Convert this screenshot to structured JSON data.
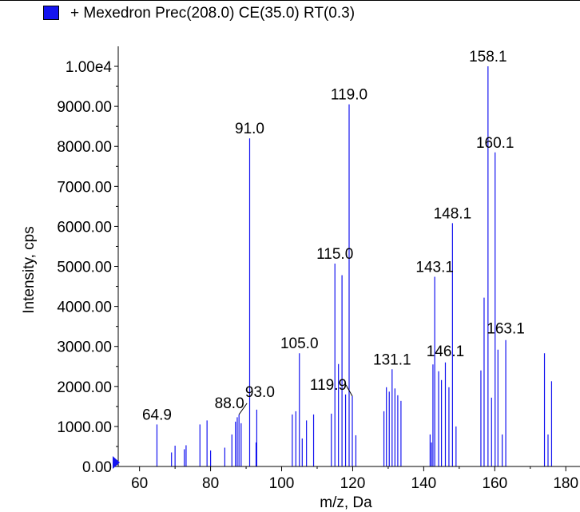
{
  "legend": {
    "label": "+ Mexedron Prec(208.0) CE(35.0) RT(0.3)",
    "color": "#1414f0"
  },
  "chart_data": {
    "type": "bar",
    "title": "",
    "xlabel": "m/z, Da",
    "ylabel": "Intensity, cps",
    "xlim": [
      54,
      184
    ],
    "ylim": [
      0,
      10500
    ],
    "x_ticks": [
      60,
      80,
      100,
      120,
      140,
      160,
      180
    ],
    "x_tick_labels": [
      "60",
      "80",
      "100",
      "120",
      "140",
      "160",
      "180"
    ],
    "y_ticks": [
      0,
      1000,
      2000,
      3000,
      4000,
      5000,
      6000,
      7000,
      8000,
      9000,
      10000
    ],
    "y_tick_labels": [
      "0.00",
      "1000.00",
      "2000.00",
      "3000.00",
      "4000.00",
      "5000.00",
      "6000.00",
      "7000.00",
      "8000.00",
      "9000.00",
      "1.00e4"
    ],
    "line_color": "#1414f0",
    "series": [
      {
        "x": [
          64.9,
          69.0,
          70.0,
          72.6,
          73.1,
          77.0,
          79.0,
          80.0,
          84.0,
          86.0,
          87.0,
          87.5,
          88.0,
          88.6,
          91.0,
          92.8,
          93.0,
          103.0,
          104.0,
          105.0,
          105.8,
          107.0,
          109.0,
          114.0,
          115.0,
          116.0,
          117.0,
          118.0,
          119.0,
          119.9,
          120.9,
          128.8,
          129.5,
          130.3,
          131.1,
          131.9,
          132.7,
          133.6,
          141.8,
          142.2,
          142.6,
          143.1,
          144.2,
          145.0,
          146.1,
          147.1,
          148.1,
          149.1,
          156.1,
          157.0,
          158.1,
          159.1,
          160.1,
          160.9,
          162.1,
          163.1,
          174.0,
          175.0,
          176.0
        ],
        "values": [
          1050,
          350,
          520,
          430,
          530,
          1050,
          1150,
          400,
          470,
          800,
          1120,
          1230,
          1300,
          1080,
          8200,
          600,
          1420,
          1300,
          1380,
          2830,
          700,
          1150,
          1300,
          1320,
          5070,
          2560,
          4780,
          1800,
          9050,
          1760,
          780,
          1380,
          1980,
          1870,
          2430,
          1950,
          1780,
          1640,
          800,
          600,
          2550,
          4740,
          2380,
          2160,
          2600,
          1980,
          6080,
          1000,
          2400,
          4220,
          10000,
          1720,
          7850,
          2920,
          800,
          3160,
          2830,
          800,
          2130
        ]
      }
    ],
    "peak_labels": [
      {
        "text": "64.9",
        "x": 64.9
      },
      {
        "text": "88.0",
        "x": 88.0
      },
      {
        "text": "93.0",
        "x": 93.0
      },
      {
        "text": "91.0",
        "x": 91.0
      },
      {
        "text": "105.0",
        "x": 105.0
      },
      {
        "text": "115.0",
        "x": 115.0
      },
      {
        "text": "119.0",
        "x": 119.0
      },
      {
        "text": "119.9",
        "x": 119.9
      },
      {
        "text": "131.1",
        "x": 131.1
      },
      {
        "text": "143.1",
        "x": 143.1
      },
      {
        "text": "146.1",
        "x": 146.1
      },
      {
        "text": "148.1",
        "x": 148.1
      },
      {
        "text": "158.1",
        "x": 158.1
      },
      {
        "text": "160.1",
        "x": 160.1
      },
      {
        "text": "163.1",
        "x": 163.1
      }
    ]
  }
}
